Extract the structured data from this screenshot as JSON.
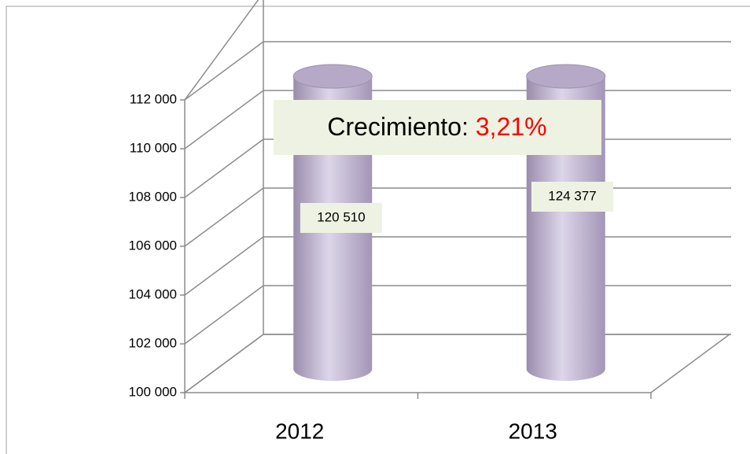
{
  "chart_data": {
    "type": "bar3d",
    "categories": [
      "2012",
      "2013"
    ],
    "values": [
      120510,
      124377
    ],
    "value_labels": [
      "120 510",
      "124 377"
    ],
    "color": "#c8bcd8",
    "ylim": [
      100000,
      112000
    ],
    "yticks": [
      {
        "value": 100000,
        "label": "100 000"
      },
      {
        "value": 102000,
        "label": "102 000"
      },
      {
        "value": 104000,
        "label": "104 000"
      },
      {
        "value": 106000,
        "label": "106 000"
      },
      {
        "value": 108000,
        "label": "108 000"
      },
      {
        "value": 110000,
        "label": "110 000"
      },
      {
        "value": 112000,
        "label": "112 000"
      }
    ],
    "grid": true,
    "annotation": {
      "text": "Crecimiento:",
      "highlight": "3,21%"
    }
  }
}
